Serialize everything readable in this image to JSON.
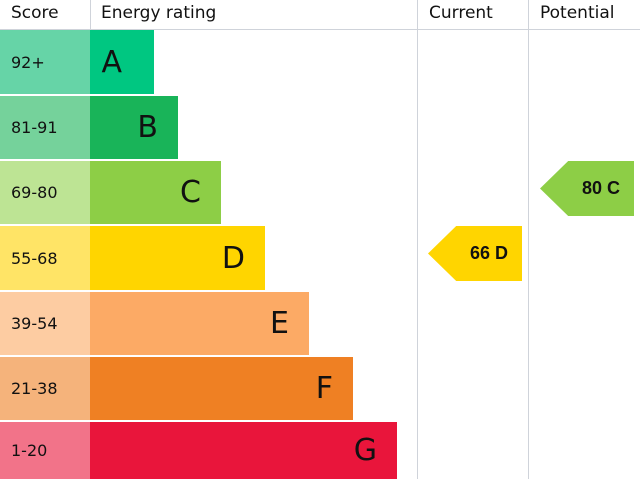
{
  "chart_data": {
    "type": "bar",
    "headers": {
      "score": "Score",
      "rating": "Energy rating",
      "current": "Current",
      "potential": "Potential"
    },
    "bands": [
      {
        "letter": "A",
        "range": "92+",
        "color": "#00c781",
        "score_color": "#66d4a7"
      },
      {
        "letter": "B",
        "range": "81-91",
        "color": "#19b459",
        "score_color": "#75d29b"
      },
      {
        "letter": "C",
        "range": "69-80",
        "color": "#8dce46",
        "score_color": "#bde494"
      },
      {
        "letter": "D",
        "range": "55-68",
        "color": "#ffd500",
        "score_color": "#ffe466"
      },
      {
        "letter": "E",
        "range": "39-54",
        "color": "#fcaa65",
        "score_color": "#fdcca2"
      },
      {
        "letter": "F",
        "range": "21-38",
        "color": "#ef8023",
        "score_color": "#f5b37b"
      },
      {
        "letter": "G",
        "range": "1-20",
        "color": "#e9153b",
        "score_color": "#f27389"
      }
    ],
    "current": {
      "value": 66,
      "band": "D",
      "label": "66 D",
      "color": "#ffd500"
    },
    "potential": {
      "value": 80,
      "band": "C",
      "label": "80 C",
      "color": "#8dce46"
    }
  }
}
